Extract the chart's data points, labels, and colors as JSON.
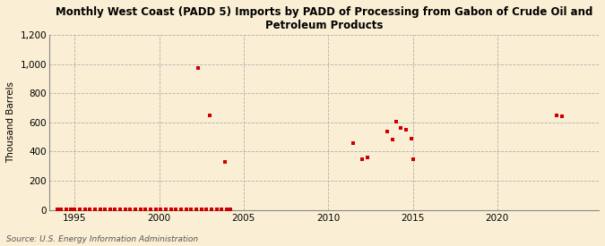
{
  "title": "Monthly West Coast (PADD 5) Imports by PADD of Processing from Gabon of Crude Oil and\nPetroleum Products",
  "ylabel": "Thousand Barrels",
  "source": "Source: U.S. Energy Information Administration",
  "background_color": "#faefd4",
  "scatter_color": "#cc0000",
  "marker_size": 12,
  "xlim": [
    1993.5,
    2026
  ],
  "ylim": [
    0,
    1200
  ],
  "yticks": [
    0,
    200,
    400,
    600,
    800,
    1000,
    1200
  ],
  "xticks": [
    1995,
    2000,
    2005,
    2010,
    2015,
    2020
  ],
  "data_x": [
    1994.0,
    1994.2,
    1994.5,
    1994.8,
    1995.0,
    1995.3,
    1995.6,
    1995.9,
    1996.2,
    1996.5,
    1996.8,
    1997.1,
    1997.4,
    1997.7,
    1998.0,
    1998.3,
    1998.6,
    1998.9,
    1999.2,
    1999.5,
    1999.8,
    2000.1,
    2000.4,
    2000.7,
    2001.0,
    2001.3,
    2001.6,
    2001.9,
    2002.2,
    2002.5,
    2002.8,
    2003.1,
    2003.4,
    2003.7,
    2004.0,
    2004.2,
    2002.3,
    2003.0,
    2003.9,
    2011.5,
    2012.0,
    2012.3,
    2013.5,
    2013.8,
    2014.0,
    2014.3,
    2014.6,
    2014.9,
    2015.0,
    2023.5,
    2023.8
  ],
  "data_y": [
    2,
    2,
    2,
    2,
    2,
    2,
    2,
    2,
    2,
    2,
    2,
    2,
    2,
    2,
    2,
    2,
    2,
    2,
    2,
    2,
    2,
    2,
    2,
    2,
    2,
    2,
    2,
    2,
    2,
    2,
    2,
    2,
    2,
    2,
    2,
    2,
    975,
    645,
    330,
    460,
    350,
    360,
    540,
    480,
    605,
    560,
    550,
    490,
    350,
    650,
    640
  ]
}
